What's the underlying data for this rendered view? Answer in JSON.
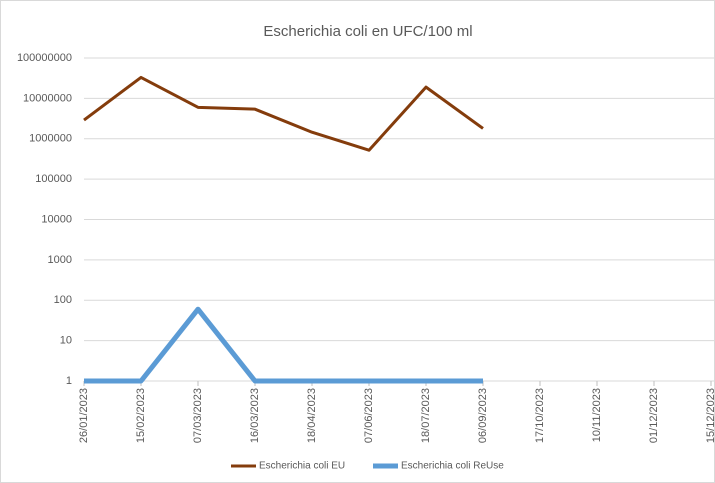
{
  "chart_data": {
    "type": "line",
    "title": "Escherichia coli en UFC/100 ml",
    "categories": [
      "26/01/2023",
      "15/02/2023",
      "07/03/2023",
      "16/03/2023",
      "18/04/2023",
      "07/06/2023",
      "18/07/2023",
      "06/09/2023",
      "17/10/2023",
      "10/11/2023",
      "01/12/2023",
      "15/12/2023"
    ],
    "series": [
      {
        "name": "Escherichia coli EU",
        "color": "#843c0c",
        "values": [
          2900000,
          33000000,
          6000000,
          5400000,
          1450000,
          520000,
          19000000,
          1800000,
          null,
          null,
          null,
          null
        ]
      },
      {
        "name": "Escherichia coli ReUse",
        "color": "#5b9bd5",
        "values": [
          1,
          1,
          60,
          1,
          1,
          1,
          1,
          1,
          null,
          null,
          null,
          null
        ]
      }
    ],
    "ylim": [
      1,
      100000000
    ],
    "yticks": [
      1,
      10,
      100,
      1000,
      10000,
      100000,
      1000000,
      10000000,
      100000000
    ],
    "log_scale": true,
    "grid": true,
    "legend": "bottom"
  }
}
